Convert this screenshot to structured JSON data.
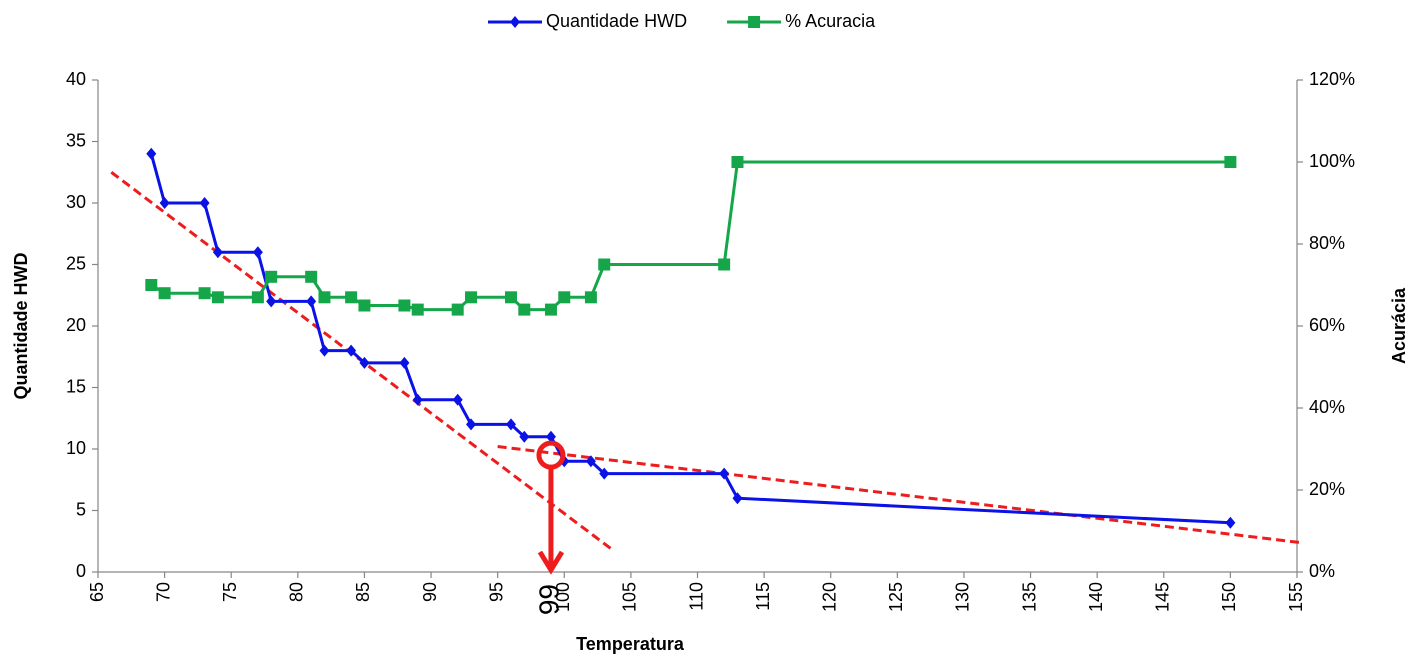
{
  "chart_data": {
    "type": "line",
    "x_label": "Temperatura",
    "y_label": "Quantidade HWD",
    "y2_label": "Acurácia",
    "x": [
      69,
      70,
      73,
      74,
      77,
      78,
      81,
      82,
      84,
      85,
      88,
      89,
      92,
      93,
      96,
      97,
      99,
      100,
      102,
      103,
      112,
      113,
      150
    ],
    "series": [
      {
        "name": "Quantidade HWD",
        "color": "#0a12e6",
        "marker": "diamond",
        "values": [
          34,
          30,
          30,
          26,
          26,
          22,
          22,
          18,
          18,
          17,
          17,
          14,
          14,
          12,
          12,
          11,
          11,
          9,
          9,
          8,
          8,
          6,
          4
        ]
      },
      {
        "name": "% Acuracia",
        "color": "#16a64a",
        "marker": "square",
        "axis": "y2",
        "values": [
          70,
          68,
          68,
          67,
          67,
          72,
          72,
          67,
          67,
          65,
          65,
          64,
          64,
          67,
          67,
          64,
          64,
          67,
          67,
          75,
          75,
          100,
          100
        ]
      }
    ],
    "trendlines": [
      {
        "color": "#ee1c1c",
        "x": [
          66,
          103.5
        ],
        "values": [
          32.5,
          1.9
        ]
      },
      {
        "color": "#ee1c1c",
        "x": [
          95,
          155.2
        ],
        "values": [
          10.2,
          2.4
        ]
      }
    ],
    "annotation": {
      "x": 99,
      "y": 9.5,
      "label": "99",
      "color": "#ee1c1c"
    },
    "xlim": [
      65,
      155
    ],
    "xticks": [
      65,
      70,
      75,
      80,
      85,
      90,
      95,
      100,
      105,
      110,
      115,
      120,
      125,
      130,
      135,
      140,
      145,
      150,
      155
    ],
    "ylim": [
      0,
      40
    ],
    "yticks": [
      0,
      5,
      10,
      15,
      20,
      25,
      30,
      35,
      40
    ],
    "y2lim": [
      0,
      120
    ],
    "y2ticks": [
      {
        "value": 0,
        "label": "0%"
      },
      {
        "value": 20,
        "label": "20%"
      },
      {
        "value": 40,
        "label": "40%"
      },
      {
        "value": 60,
        "label": "60%"
      },
      {
        "value": 80,
        "label": "80%"
      },
      {
        "value": 100,
        "label": "100%"
      },
      {
        "value": 120,
        "label": "120%"
      }
    ],
    "grid": false,
    "legend": "top"
  }
}
